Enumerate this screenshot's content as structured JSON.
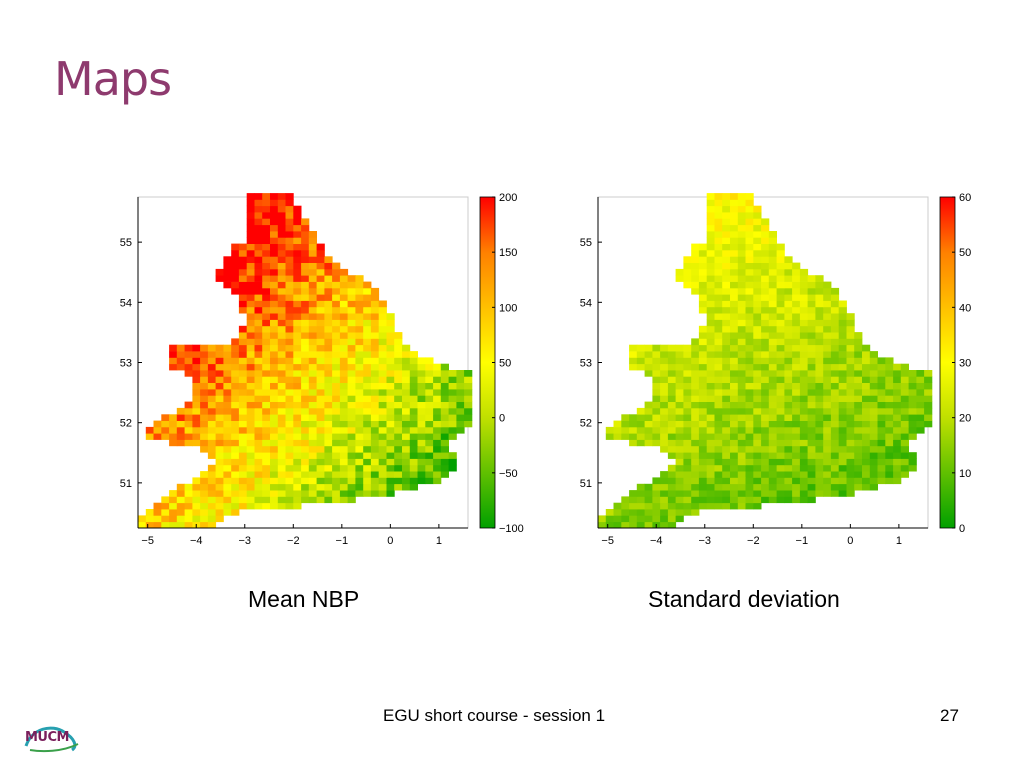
{
  "slide": {
    "title": "Maps",
    "footer": "EGU short course - session 1",
    "page_number": "27",
    "logo_text": "MUCM"
  },
  "chart_data": [
    {
      "type": "heatmap",
      "caption": "Mean NBP",
      "x_ticks": [
        -5,
        -4,
        -3,
        -2,
        -1,
        0,
        1
      ],
      "y_ticks": [
        51,
        52,
        53,
        54,
        55
      ],
      "xlim": [
        -5.2,
        1.6
      ],
      "ylim": [
        50.25,
        55.75
      ],
      "colorbar": {
        "ticks": [
          -100,
          -50,
          0,
          50,
          100,
          150,
          200
        ],
        "min": -100,
        "max": 200,
        "colors": [
          "#00a000",
          "#60c000",
          "#c0e000",
          "#ffff00",
          "#ffc000",
          "#ff8000",
          "#ff0000"
        ]
      },
      "grid": "off"
    },
    {
      "type": "heatmap",
      "caption": "Standard deviation",
      "x_ticks": [
        -5,
        -4,
        -3,
        -2,
        -1,
        0,
        1
      ],
      "y_ticks": [
        51,
        52,
        53,
        54,
        55
      ],
      "xlim": [
        -5.2,
        1.6
      ],
      "ylim": [
        50.25,
        55.75
      ],
      "colorbar": {
        "ticks": [
          0,
          10,
          20,
          30,
          40,
          50,
          60
        ],
        "min": 0,
        "max": 60,
        "colors": [
          "#00a000",
          "#60c000",
          "#c0e000",
          "#ffff00",
          "#ffc000",
          "#ff8000",
          "#ff0000"
        ]
      },
      "grid": "off"
    }
  ]
}
